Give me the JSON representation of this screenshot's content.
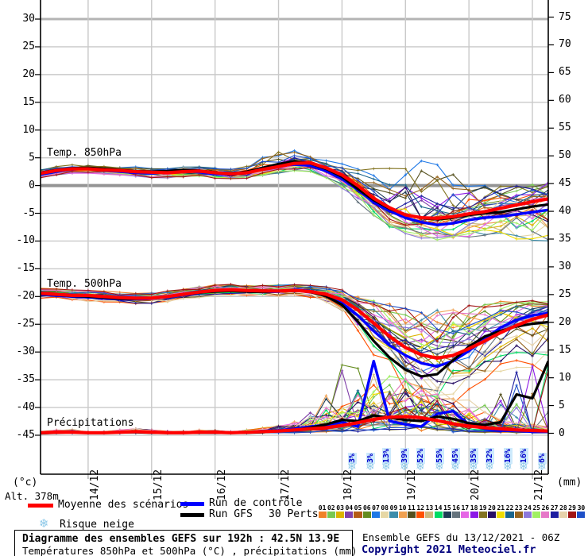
{
  "chart_data": {
    "type": "line",
    "title": "Diagramme des ensembles GEFS sur 192h : 42.5N 13.9E",
    "subtitle": "Températures 850hPa et 500hPa (°C) , précipitations (mm)",
    "x": {
      "step_hours": 6,
      "total_hours": 192,
      "day_labels": [
        "14/12",
        "15/12",
        "16/12",
        "17/12",
        "18/12",
        "19/12",
        "20/12",
        "21/12"
      ],
      "day_hours": [
        18,
        42,
        66,
        90,
        114,
        138,
        162,
        186
      ]
    },
    "y_left": {
      "unit": "(°c)",
      "ticks": [
        30,
        25,
        20,
        15,
        10,
        5,
        0,
        -5,
        -10,
        -15,
        -20,
        -25,
        -30,
        -35,
        -40,
        -45
      ],
      "emphasized": [
        30,
        0
      ]
    },
    "y_right": {
      "unit": "(mm)",
      "ticks": [
        75,
        70,
        65,
        60,
        55,
        50,
        45,
        40,
        35,
        30,
        25,
        20,
        15,
        10,
        5,
        0
      ]
    },
    "line_colors": {
      "mean": "#ff0000",
      "control": "#0000ff",
      "gfs": "#000000"
    },
    "panels": [
      {
        "id": "t850",
        "label": "Temp. 850hPa",
        "series": {
          "mean": [
            2.2,
            2.7,
            3.0,
            3.0,
            2.8,
            2.7,
            2.5,
            2.4,
            2.3,
            2.5,
            2.6,
            2.3,
            2.1,
            2.3,
            2.9,
            3.4,
            4.0,
            4.1,
            3.2,
            1.9,
            0.0,
            -2.3,
            -4.0,
            -5.3,
            -5.8,
            -5.9,
            -5.6,
            -5.1,
            -4.7,
            -4.1,
            -3.5,
            -2.9,
            -2.4
          ],
          "control": [
            2.0,
            2.5,
            2.9,
            3.1,
            2.7,
            2.5,
            2.3,
            2.2,
            2.4,
            2.7,
            2.4,
            2.1,
            2.0,
            2.4,
            3.1,
            3.6,
            3.8,
            3.6,
            2.6,
            1.2,
            -0.8,
            -3.0,
            -4.6,
            -5.8,
            -6.6,
            -7.1,
            -6.8,
            -6.2,
            -5.8,
            -5.6,
            -5.2,
            -4.8,
            -4.4
          ],
          "gfs": [
            2.3,
            2.8,
            3.1,
            3.2,
            3.0,
            2.8,
            2.6,
            2.5,
            2.6,
            2.8,
            2.7,
            2.4,
            2.2,
            2.5,
            3.2,
            3.9,
            4.4,
            4.0,
            3.0,
            1.6,
            -0.6,
            -2.6,
            -4.2,
            -5.2,
            -5.9,
            -6.1,
            -5.8,
            -5.3,
            -5.0,
            -4.8,
            -4.3,
            -3.8,
            -3.4
          ]
        },
        "envelope": {
          "min": [
            1.4,
            1.9,
            2.2,
            2.2,
            2.0,
            1.8,
            1.6,
            1.4,
            1.3,
            1.5,
            1.6,
            1.3,
            1.1,
            1.3,
            1.8,
            2.2,
            2.6,
            2.4,
            1.4,
            -0.5,
            -3.0,
            -5.5,
            -7.5,
            -8.8,
            -9.5,
            -9.8,
            -9.6,
            -9.4,
            -9.2,
            -9.3,
            -9.8,
            -10.3,
            -10.8
          ],
          "max": [
            3.0,
            3.5,
            3.8,
            3.8,
            3.6,
            3.5,
            3.4,
            3.3,
            3.3,
            3.5,
            3.6,
            3.4,
            3.2,
            3.8,
            5.4,
            7.0,
            6.6,
            5.6,
            4.6,
            4.0,
            3.4,
            3.2,
            3.8,
            4.6,
            5.0,
            4.4,
            3.2,
            2.0,
            1.2,
            0.8,
            1.0,
            1.4,
            1.8
          ]
        }
      },
      {
        "id": "t500",
        "label": "Temp. 500hPa",
        "series": {
          "mean": [
            -19.4,
            -19.6,
            -19.8,
            -19.8,
            -20.0,
            -20.2,
            -20.3,
            -20.3,
            -20.0,
            -19.6,
            -19.2,
            -18.9,
            -18.8,
            -18.9,
            -19.0,
            -19.0,
            -18.9,
            -19.1,
            -19.6,
            -20.6,
            -22.4,
            -24.8,
            -27.2,
            -29.2,
            -30.5,
            -31.1,
            -30.6,
            -29.4,
            -28.0,
            -26.5,
            -25.2,
            -24.1,
            -23.3
          ],
          "control": [
            -19.6,
            -19.8,
            -20.0,
            -20.1,
            -20.3,
            -20.5,
            -20.5,
            -20.4,
            -20.1,
            -19.7,
            -19.3,
            -19.0,
            -18.9,
            -19.0,
            -19.2,
            -19.1,
            -18.8,
            -19.0,
            -19.8,
            -21.2,
            -23.4,
            -26.2,
            -28.8,
            -30.6,
            -32.0,
            -32.6,
            -31.6,
            -29.8,
            -27.6,
            -25.6,
            -24.2,
            -23.4,
            -23.0
          ],
          "gfs": [
            -19.5,
            -19.7,
            -19.9,
            -20.0,
            -20.2,
            -20.4,
            -20.4,
            -20.3,
            -20.0,
            -19.6,
            -19.3,
            -19.1,
            -19.0,
            -19.1,
            -19.2,
            -19.0,
            -18.9,
            -19.2,
            -19.9,
            -21.5,
            -24.5,
            -28.0,
            -31.0,
            -33.2,
            -34.4,
            -34.0,
            -31.5,
            -29.0,
            -27.2,
            -26.2,
            -25.4,
            -24.9,
            -24.6
          ]
        },
        "envelope": {
          "min": [
            -20.4,
            -20.6,
            -20.8,
            -20.9,
            -21.1,
            -21.3,
            -21.4,
            -21.3,
            -21.0,
            -20.6,
            -20.2,
            -19.9,
            -19.8,
            -19.9,
            -20.1,
            -20.1,
            -20.0,
            -20.4,
            -21.4,
            -23.5,
            -27.0,
            -31.0,
            -34.5,
            -37.5,
            -39.5,
            -40.5,
            -39.5,
            -37.5,
            -35.5,
            -34.0,
            -33.0,
            -33.5,
            -34.5
          ],
          "max": [
            -18.4,
            -18.6,
            -18.8,
            -18.8,
            -19.0,
            -19.2,
            -19.3,
            -19.2,
            -18.9,
            -18.5,
            -18.1,
            -17.8,
            -17.7,
            -17.8,
            -17.9,
            -17.9,
            -17.8,
            -17.9,
            -18.2,
            -18.8,
            -19.6,
            -20.4,
            -21.2,
            -21.8,
            -22.2,
            -22.2,
            -21.8,
            -21.4,
            -21.0,
            -20.8,
            -20.6,
            -20.6,
            -20.8
          ]
        }
      },
      {
        "id": "precip",
        "label": "Précipitations",
        "series": {
          "mean": [
            0.1,
            0.2,
            0.2,
            0.1,
            0.1,
            0.2,
            0.3,
            0.2,
            0.1,
            0.1,
            0.2,
            0.2,
            0.1,
            0.2,
            0.3,
            0.4,
            0.6,
            0.8,
            1.0,
            1.4,
            1.9,
            2.5,
            2.9,
            3.0,
            2.8,
            2.3,
            1.7,
            1.3,
            1.0,
            0.8,
            0.6,
            0.5,
            0.4
          ],
          "control": [
            0.1,
            0.2,
            0.3,
            0.1,
            0.1,
            0.2,
            0.3,
            0.2,
            0.1,
            0.1,
            0.2,
            0.1,
            0.1,
            0.2,
            0.4,
            0.5,
            0.8,
            1.2,
            1.5,
            2.0,
            1.2,
            13.0,
            2.2,
            1.6,
            1.2,
            3.5,
            4.0,
            1.5,
            0.8,
            0.5,
            0.4,
            0.3,
            0.3
          ],
          "gfs": [
            0.0,
            0.1,
            0.2,
            0.1,
            0.1,
            0.2,
            0.2,
            0.1,
            0.1,
            0.1,
            0.1,
            0.1,
            0.1,
            0.1,
            0.2,
            0.4,
            0.6,
            1.0,
            1.6,
            2.4,
            2.2,
            3.2,
            2.8,
            2.4,
            2.2,
            3.0,
            2.6,
            1.8,
            1.5,
            2.0,
            7.0,
            6.3,
            13.0
          ]
        },
        "envelope": {
          "min": [
            0,
            0,
            0,
            0,
            0,
            0,
            0,
            0,
            0,
            0,
            0,
            0,
            0,
            0,
            0,
            0,
            0,
            0,
            0,
            0,
            0,
            0,
            0,
            0,
            0,
            0,
            0,
            0,
            0,
            0,
            0,
            0,
            0
          ],
          "max": [
            0.4,
            0.6,
            0.8,
            0.5,
            0.4,
            0.6,
            0.8,
            0.6,
            0.4,
            0.4,
            0.6,
            0.5,
            0.4,
            0.6,
            1.0,
            1.6,
            3.0,
            5.0,
            8.0,
            14.0,
            13.0,
            13.5,
            12.0,
            10.0,
            9.0,
            8.0,
            7.5,
            7.0,
            6.0,
            8.0,
            13.0,
            14.0,
            15.0
          ]
        }
      }
    ],
    "snow_risk": {
      "icon": "❄",
      "percent_labels": [
        "3%",
        "3%",
        "13%",
        "39%",
        "52%",
        "55%",
        "45%",
        "35%",
        "32%",
        "16%",
        "16%",
        "6%"
      ],
      "hours": [
        118,
        125,
        131,
        138,
        144,
        151,
        157,
        164,
        170,
        177,
        183,
        190
      ]
    },
    "members": {
      "count": 30,
      "labels": [
        "01",
        "02",
        "03",
        "04",
        "05",
        "06",
        "07",
        "08",
        "09",
        "10",
        "11",
        "12",
        "13",
        "14",
        "15",
        "16",
        "17",
        "18",
        "19",
        "20",
        "21",
        "22",
        "23",
        "24",
        "25",
        "26",
        "27",
        "28",
        "29",
        "30"
      ],
      "colors": [
        "#f08228",
        "#78c850",
        "#dcb400",
        "#8040a8",
        "#b45a14",
        "#648c1e",
        "#1e78e6",
        "#e6d7a5",
        "#3c8caa",
        "#f0a050",
        "#55501e",
        "#ff5000",
        "#cdb87d",
        "#00dc64",
        "#1e3c55",
        "#64737d",
        "#e667e6",
        "#8c19e6",
        "#827320",
        "#280f64",
        "#f0dc00",
        "#19648c",
        "#96641e",
        "#8c78dc",
        "#a0f064",
        "#e678c8",
        "#1e1ea0",
        "#e6d2aa",
        "#a01414",
        "#1e50c8"
      ]
    }
  },
  "legend": {
    "mean": "Moyenne des scénarios",
    "control": "Run de contrôle",
    "gfs": "Run GFS",
    "perts": "30 Perts.",
    "snow": "Risque neige"
  },
  "info": {
    "alt": "Alt. 378m",
    "run": "Ensemble GEFS du 13/12/2021 - 06Z",
    "copyright": "Copyright 2021 Meteociel.fr"
  },
  "title_box": {
    "line1": "Diagramme des ensembles GEFS sur 192h : 42.5N 13.9E",
    "line2": "Températures 850hPa et 500hPa (°C) , précipitations (mm)"
  }
}
